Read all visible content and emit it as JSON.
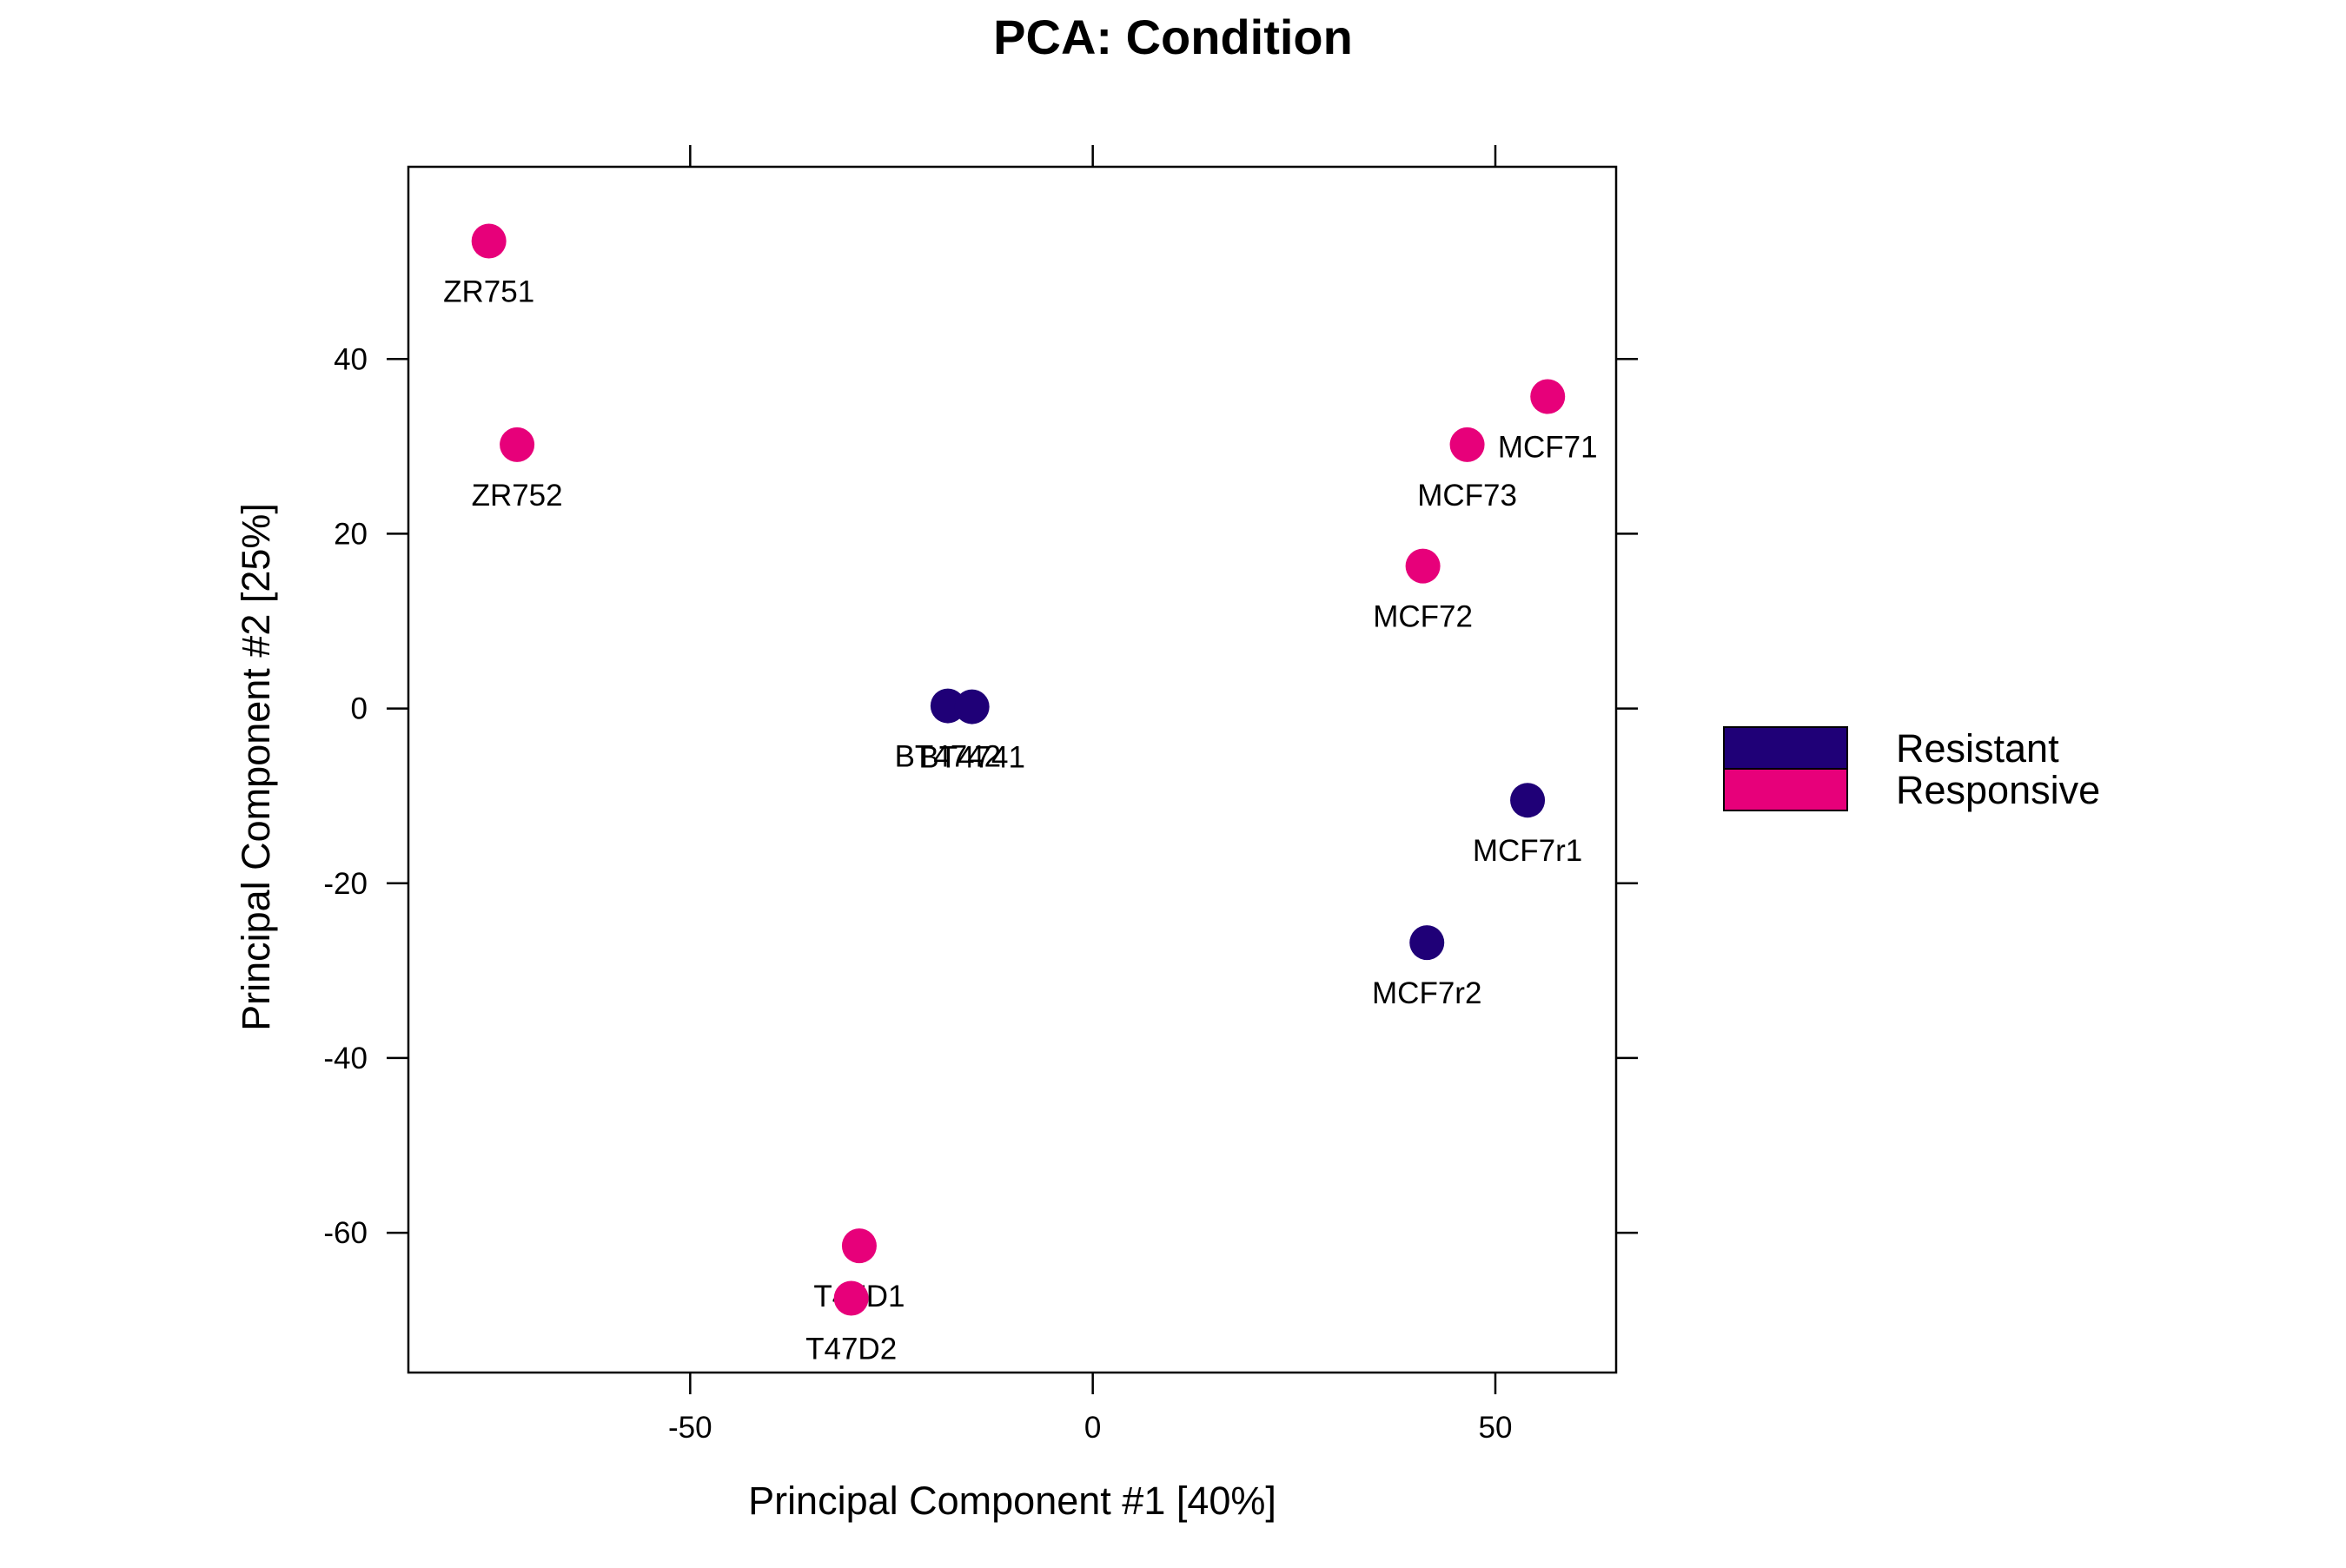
{
  "chart_data": {
    "type": "scatter",
    "title": "PCA: Condition",
    "xlabel": "Principal Component #1 [40%]",
    "ylabel": "Principal Component #2 [25%]",
    "xlim": [
      -85,
      65
    ],
    "ylim": [
      -76,
      62
    ],
    "xticks": [
      -50,
      0,
      50
    ],
    "yticks": [
      -60,
      -40,
      -20,
      0,
      20,
      40
    ],
    "grid": false,
    "legend_position": "right",
    "series": [
      {
        "name": "Resistant",
        "color": "#1F0077",
        "points": [
          {
            "label": "BT4742",
            "x": -18,
            "y": 0.3
          },
          {
            "label": "BT4741",
            "x": -15,
            "y": 0.2
          },
          {
            "label": "MCF7r1",
            "x": 54,
            "y": -10.5
          },
          {
            "label": "MCF7r2",
            "x": 41.5,
            "y": -26.8
          }
        ]
      },
      {
        "name": "Responsive",
        "color": "#E7007A",
        "points": [
          {
            "label": "ZR751",
            "x": -75,
            "y": 53.5
          },
          {
            "label": "ZR752",
            "x": -71.5,
            "y": 30.2
          },
          {
            "label": "MCF71",
            "x": 56.5,
            "y": 35.7
          },
          {
            "label": "MCF73",
            "x": 46.5,
            "y": 30.2
          },
          {
            "label": "MCF72",
            "x": 41,
            "y": 16.3
          },
          {
            "label": "T47D1",
            "x": -29,
            "y": -61.5
          },
          {
            "label": "T47D2",
            "x": -30,
            "y": -67.5
          }
        ]
      }
    ]
  }
}
